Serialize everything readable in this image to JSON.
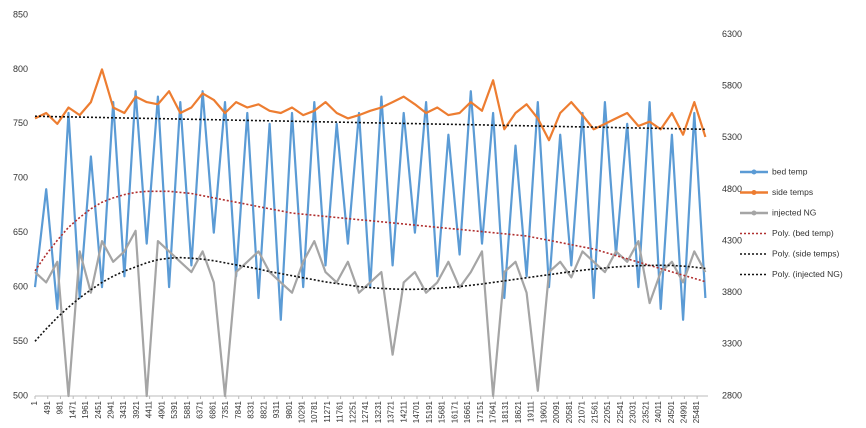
{
  "chart_data": {
    "type": "line",
    "x": [
      1,
      431,
      861,
      1291,
      1721,
      2151,
      2581,
      3011,
      3441,
      3871,
      4301,
      4731,
      5161,
      5591,
      6021,
      6451,
      6881,
      7311,
      7741,
      8171,
      8601,
      9031,
      9461,
      9891,
      10321,
      10751,
      11181,
      11611,
      12041,
      12471,
      12901,
      13331,
      13761,
      14191,
      14621,
      15051,
      15481,
      15911,
      16341,
      16771,
      17201,
      17631,
      18061,
      18491,
      18921,
      19351,
      19781,
      20211,
      20641,
      21071,
      21501,
      21931,
      22361,
      22791,
      23221,
      23651,
      24081,
      24511,
      24941,
      25371,
      25801
    ],
    "xlim": [
      1,
      25900
    ],
    "xticks": [
      1,
      491,
      981,
      1471,
      1961,
      2451,
      2941,
      3431,
      3921,
      4411,
      4901,
      5391,
      5881,
      6371,
      6861,
      7351,
      7841,
      8331,
      8821,
      9311,
      9801,
      10291,
      10781,
      11271,
      11761,
      12251,
      12741,
      13231,
      13721,
      14211,
      14701,
      15191,
      15681,
      16171,
      16661,
      17151,
      17641,
      18131,
      18621,
      19111,
      19601,
      20091,
      20581,
      21071,
      21561,
      22051,
      22541,
      23031,
      23521,
      24011,
      24501,
      24991,
      25481
    ],
    "ylim": [
      500,
      850
    ],
    "yticks": [
      500,
      550,
      600,
      650,
      700,
      750,
      800,
      850
    ],
    "y2lim": [
      2800,
      6490
    ],
    "y2ticks": [
      2800,
      3300,
      3800,
      4300,
      4800,
      5300,
      5800,
      6300
    ],
    "series": [
      {
        "name": "bed temp",
        "color": "#5b9bd5",
        "values": [
          600,
          690,
          580,
          760,
          590,
          720,
          600,
          770,
          610,
          780,
          640,
          775,
          600,
          770,
          620,
          780,
          650,
          770,
          610,
          760,
          590,
          750,
          570,
          760,
          600,
          770,
          620,
          750,
          640,
          760,
          600,
          775,
          620,
          760,
          650,
          770,
          610,
          740,
          630,
          780,
          640,
          760,
          590,
          730,
          610,
          770,
          600,
          740,
          620,
          760,
          590,
          770,
          630,
          750,
          600,
          770,
          580,
          740,
          570,
          760,
          590
        ]
      },
      {
        "name": "side temps",
        "color": "#ed7d31",
        "values": [
          755,
          760,
          750,
          765,
          758,
          770,
          800,
          765,
          760,
          775,
          770,
          768,
          780,
          760,
          765,
          778,
          772,
          760,
          770,
          765,
          768,
          762,
          760,
          765,
          758,
          762,
          770,
          760,
          755,
          758,
          762,
          765,
          770,
          775,
          768,
          760,
          765,
          758,
          760,
          770,
          762,
          790,
          745,
          760,
          768,
          755,
          735,
          760,
          770,
          758,
          745,
          750,
          755,
          760,
          748,
          752,
          745,
          760,
          740,
          770,
          738
        ]
      },
      {
        "name": "injected NG",
        "color": "#a5a5a5",
        "axis": "y2",
        "values": [
          4000,
          3900,
          4100,
          2800,
          4200,
          3800,
          4300,
          4100,
          4200,
          4400,
          2800,
          4300,
          4200,
          4100,
          4000,
          4200,
          3900,
          2800,
          4000,
          4100,
          4200,
          4000,
          3900,
          3800,
          4100,
          4300,
          4000,
          3900,
          4100,
          3800,
          3900,
          4000,
          3200,
          3900,
          4000,
          3800,
          3900,
          4100,
          3850,
          4000,
          4200,
          2800,
          4000,
          4100,
          3800,
          2850,
          4000,
          4100,
          3950,
          4200,
          4100,
          4000,
          4200,
          4100,
          4300,
          3700,
          4000,
          4100,
          3900,
          4200,
          4000
        ]
      },
      {
        "name": "Poly. (bed temp)",
        "color": "#b03030",
        "dash": true,
        "values": [
          615,
          630,
          643,
          655,
          664,
          672,
          678,
          682,
          685,
          687,
          688,
          688,
          688,
          687,
          686,
          684,
          682,
          680,
          678,
          676,
          674,
          672,
          670,
          668,
          667,
          666,
          665,
          664,
          663,
          662,
          661,
          660,
          659,
          658,
          657,
          656,
          655,
          654,
          653,
          652,
          651,
          650,
          649,
          648,
          647,
          645,
          643,
          641,
          639,
          637,
          635,
          632,
          629,
          626,
          623,
          620,
          617,
          614,
          611,
          608,
          605
        ]
      },
      {
        "name": "Poly. (side temps)",
        "color": "#111111",
        "dash": true,
        "values": [
          757,
          756.8,
          756.6,
          756.4,
          756.2,
          756,
          755.8,
          755.6,
          755.4,
          755.2,
          755,
          754.8,
          754.6,
          754.4,
          754.2,
          754,
          753.8,
          753.6,
          753.4,
          753.2,
          753,
          752.8,
          752.6,
          752.4,
          752.2,
          752,
          751.8,
          751.6,
          751.4,
          751.2,
          751,
          750.8,
          750.6,
          750.4,
          750.2,
          750,
          749.8,
          749.6,
          749.4,
          749.2,
          749,
          748.8,
          748.6,
          748.4,
          748.2,
          748,
          747.8,
          747.6,
          747.4,
          747.2,
          747,
          746.8,
          746.6,
          746.4,
          746.2,
          746,
          745.8,
          745.6,
          745.4,
          745.2,
          745
        ]
      },
      {
        "name": "Poly. (injected NG)",
        "color": "#111111",
        "dash": true,
        "axis": "y2",
        "values": [
          3330,
          3450,
          3560,
          3660,
          3750,
          3830,
          3900,
          3960,
          4010,
          4050,
          4090,
          4120,
          4135,
          4140,
          4135,
          4125,
          4110,
          4090,
          4070,
          4050,
          4030,
          4005,
          3985,
          3965,
          3945,
          3925,
          3905,
          3890,
          3875,
          3860,
          3850,
          3842,
          3836,
          3833,
          3833,
          3836,
          3842,
          3850,
          3860,
          3872,
          3885,
          3900,
          3915,
          3930,
          3945,
          3960,
          3975,
          3990,
          4005,
          4018,
          4030,
          4040,
          4050,
          4057,
          4062,
          4065,
          4066,
          4064,
          4058,
          4048,
          4035
        ]
      }
    ]
  }
}
